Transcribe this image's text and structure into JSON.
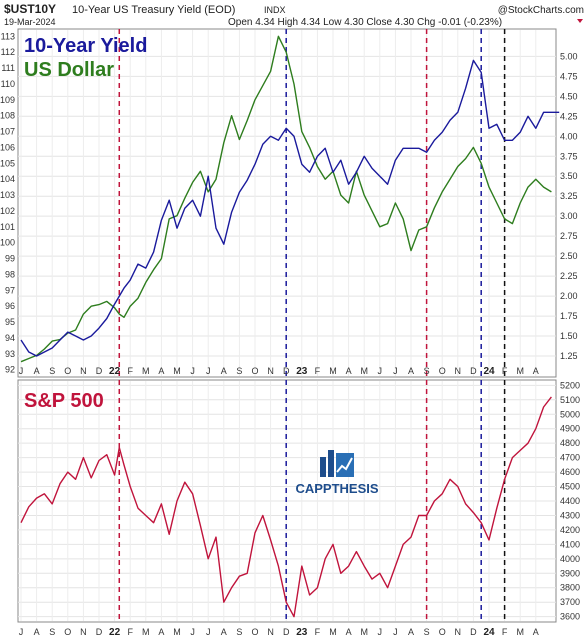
{
  "header": {
    "symbol": "$UST10Y",
    "description": "10-Year US Treasury Yield (EOD)",
    "exchange": "INDX",
    "date": "19-Mar-2024",
    "source": "@StockCharts.com",
    "ohlc": "Open 4.34  High 4.34  Low 4.30  Close 4.30  Chg -0.01 (-0.23%)"
  },
  "logo": {
    "text": "CAPPTHESIS",
    "color": "#1e4d8c"
  },
  "colors": {
    "yield": "#1a1a9c",
    "dollar": "#2e7d1e",
    "spx": "#c0143c",
    "red_line": "#c0143c",
    "blue_line": "#1a1a9c",
    "black_line": "#111111"
  },
  "x_axis": {
    "month_labels": [
      "J",
      "A",
      "S",
      "O",
      "N",
      "D",
      "22",
      "F",
      "M",
      "A",
      "M",
      "J",
      "J",
      "A",
      "S",
      "O",
      "N",
      "D",
      "23",
      "F",
      "M",
      "A",
      "M",
      "J",
      "J",
      "A",
      "S",
      "O",
      "N",
      "D",
      "24",
      "F",
      "M",
      "A"
    ]
  },
  "chart_data": [
    {
      "type": "line",
      "title": "",
      "series": [
        {
          "name": "10-Year Yield",
          "color": "#1a1a9c",
          "axis": "right",
          "x": [
            0,
            0.5,
            1,
            1.5,
            2,
            2.5,
            3,
            3.5,
            4,
            4.5,
            5,
            5.5,
            6,
            6.3,
            6.6,
            7,
            7.5,
            8,
            8.5,
            9,
            9.5,
            10,
            10.5,
            11,
            11.5,
            12,
            12.5,
            13,
            13.5,
            14,
            14.5,
            15,
            15.5,
            16,
            16.5,
            17,
            17.5,
            18,
            18.5,
            19,
            19.5,
            20,
            20.5,
            21,
            21.5,
            22,
            22.5,
            23,
            23.5,
            24,
            24.5,
            25,
            25.5,
            26,
            26.5,
            27,
            27.5,
            28,
            28.5,
            29,
            29.5,
            30,
            30.5,
            31,
            31.5,
            32,
            32.5,
            33,
            33.5,
            34,
            34.5
          ],
          "values": [
            1.45,
            1.3,
            1.25,
            1.3,
            1.35,
            1.45,
            1.55,
            1.5,
            1.45,
            1.5,
            1.6,
            1.72,
            1.9,
            2.0,
            2.1,
            2.2,
            2.4,
            2.35,
            2.55,
            2.95,
            3.2,
            2.85,
            3.1,
            3.2,
            3.0,
            3.5,
            2.85,
            2.65,
            3.05,
            3.3,
            3.45,
            3.65,
            3.9,
            4.0,
            3.95,
            4.1,
            4.0,
            3.65,
            3.55,
            3.75,
            3.85,
            3.55,
            3.7,
            3.4,
            3.55,
            3.75,
            3.6,
            3.5,
            3.4,
            3.7,
            3.85,
            3.85,
            3.85,
            3.8,
            3.95,
            4.05,
            4.2,
            4.3,
            4.6,
            4.95,
            4.8,
            4.1,
            4.15,
            3.95,
            3.95,
            4.05,
            4.25,
            4.1,
            4.3,
            4.3,
            4.3
          ]
        },
        {
          "name": "US Dollar",
          "color": "#2e7d1e",
          "axis": "left",
          "x": [
            0,
            0.5,
            1,
            1.5,
            2,
            2.5,
            3,
            3.5,
            4,
            4.5,
            5,
            5.5,
            6,
            6.3,
            6.6,
            7,
            7.5,
            8,
            8.5,
            9,
            9.5,
            10,
            10.5,
            11,
            11.5,
            12,
            12.5,
            13,
            13.5,
            14,
            14.5,
            15,
            15.5,
            16,
            16.5,
            17,
            17.5,
            18,
            18.5,
            19,
            19.5,
            20,
            20.5,
            21,
            21.5,
            22,
            22.5,
            23,
            23.5,
            24,
            24.5,
            25,
            25.5,
            26,
            26.5,
            27,
            27.5,
            28,
            28.5,
            29,
            29.5,
            30,
            30.5,
            31,
            31.5,
            32,
            32.5,
            33,
            33.5,
            34
          ],
          "values": [
            92.5,
            92.7,
            92.9,
            93.3,
            93.8,
            93.9,
            94.3,
            94.5,
            95.5,
            96.0,
            96.1,
            96.3,
            95.9,
            95.5,
            95.3,
            96.0,
            96.5,
            97.5,
            98.3,
            99.0,
            101.5,
            101.7,
            102.8,
            103.8,
            104.5,
            103.2,
            104.0,
            106.3,
            108.0,
            106.5,
            107.7,
            109.0,
            109.9,
            110.8,
            113.0,
            112.0,
            110.0,
            107.0,
            106.0,
            104.8,
            104.0,
            104.5,
            103.0,
            102.5,
            104.5,
            103.0,
            102.0,
            101.0,
            101.2,
            102.5,
            101.5,
            99.5,
            100.8,
            101.0,
            102.2,
            103.2,
            104.0,
            104.8,
            105.3,
            106.0,
            105.0,
            103.5,
            102.5,
            101.5,
            101.2,
            102.5,
            103.5,
            104.0,
            103.5,
            103.2
          ]
        }
      ],
      "left_axis": {
        "ticks": [
          92,
          93,
          94,
          95,
          96,
          97,
          98,
          99,
          100,
          101,
          102,
          103,
          104,
          105,
          106,
          107,
          108,
          109,
          110,
          111,
          112,
          113
        ],
        "range": [
          91.6,
          113.4
        ]
      },
      "right_axis": {
        "ticks": [
          "1.25",
          "1.50",
          "1.75",
          "2.00",
          "2.25",
          "2.50",
          "2.75",
          "3.00",
          "3.25",
          "3.50",
          "3.75",
          "4.00",
          "4.25",
          "4.50",
          "4.75",
          "5.00"
        ],
        "range": [
          1.0,
          5.33
        ]
      },
      "labels": [
        "10-Year Yield",
        "US Dollar"
      ]
    },
    {
      "type": "line",
      "title": "",
      "series": [
        {
          "name": "S&P 500",
          "color": "#c0143c",
          "axis": "right",
          "x": [
            0,
            0.5,
            1,
            1.5,
            2,
            2.5,
            3,
            3.5,
            4,
            4.5,
            5,
            5.5,
            6,
            6.3,
            6.6,
            7,
            7.5,
            8,
            8.5,
            9,
            9.5,
            10,
            10.5,
            11,
            11.5,
            12,
            12.5,
            13,
            13.5,
            14,
            14.5,
            15,
            15.5,
            16,
            16.5,
            17,
            17.5,
            18,
            18.5,
            19,
            19.5,
            20,
            20.5,
            21,
            21.5,
            22,
            22.5,
            23,
            23.5,
            24,
            24.5,
            25,
            25.5,
            26,
            26.5,
            27,
            27.5,
            28,
            28.5,
            29,
            29.5,
            30,
            30.5,
            31,
            31.5,
            32,
            32.5,
            33,
            33.5,
            34
          ],
          "values": [
            4250,
            4360,
            4420,
            4450,
            4380,
            4520,
            4600,
            4550,
            4700,
            4560,
            4680,
            4720,
            4580,
            4770,
            4650,
            4500,
            4350,
            4300,
            4250,
            4380,
            4170,
            4400,
            4530,
            4450,
            4230,
            4000,
            4150,
            3700,
            3800,
            3880,
            3900,
            4180,
            4300,
            4130,
            3950,
            3700,
            3600,
            3950,
            3750,
            3800,
            4000,
            4100,
            3900,
            3950,
            4050,
            3950,
            3860,
            3900,
            3800,
            3950,
            4100,
            4150,
            4300,
            4300,
            4400,
            4450,
            4550,
            4500,
            4380,
            4320,
            4250,
            4130,
            4350,
            4550,
            4700,
            4750,
            4800,
            4900,
            5050,
            5120
          ]
        }
      ],
      "axis": {
        "ticks": [
          "3600",
          "3700",
          "3800",
          "3900",
          "4000",
          "4100",
          "4200",
          "4300",
          "4400",
          "4500",
          "4600",
          "4700",
          "4800",
          "4900",
          "5000",
          "5100",
          "5200"
        ],
        "range": [
          3570,
          5230
        ]
      },
      "labels": [
        "S&P 500"
      ]
    }
  ],
  "vertical_markers": [
    {
      "x": 6.3,
      "color": "red"
    },
    {
      "x": 17,
      "color": "blue"
    },
    {
      "x": 26,
      "color": "red"
    },
    {
      "x": 29.5,
      "color": "blue"
    },
    {
      "x": 31,
      "color": "black"
    }
  ]
}
